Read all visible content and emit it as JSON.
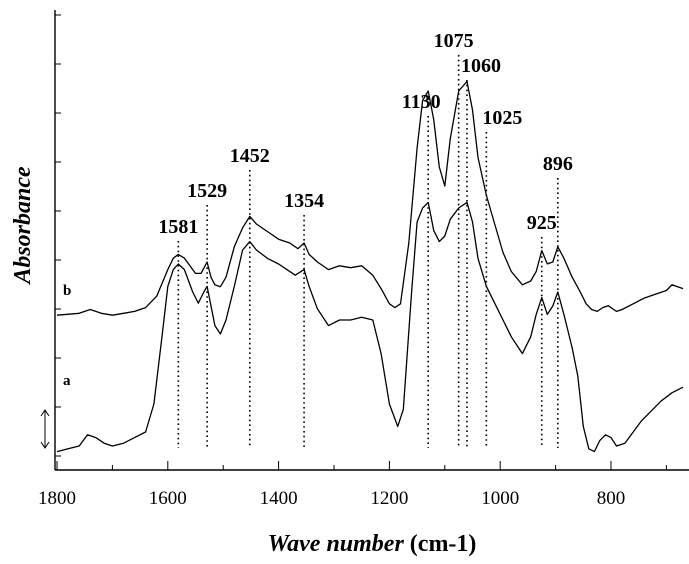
{
  "chart_data": {
    "type": "line",
    "title": "",
    "xlabel": {
      "italic": "Wave number",
      "unit": " (cm-1)"
    },
    "ylabel": "Absorbance",
    "xlim": [
      1800,
      670
    ],
    "x_reversed": true,
    "grid": false,
    "x_ticks": [
      "1800",
      "1600",
      "1400",
      "1200",
      "1000",
      "800"
    ],
    "scale_bar": "double-arrow",
    "peak_markers": [
      {
        "label": "1581",
        "x": 1581
      },
      {
        "label": "1529",
        "x": 1529
      },
      {
        "label": "1452",
        "x": 1452
      },
      {
        "label": "1354",
        "x": 1354
      },
      {
        "label": "1130",
        "x": 1130
      },
      {
        "label": "1075",
        "x": 1075
      },
      {
        "label": "1060",
        "x": 1060
      },
      {
        "label": "1025",
        "x": 1025
      },
      {
        "label": "925",
        "x": 925
      },
      {
        "label": "896",
        "x": 896
      }
    ],
    "series": [
      {
        "name": "b",
        "color": "#000000",
        "points": [
          [
            1800,
            0.22
          ],
          [
            1760,
            0.23
          ],
          [
            1740,
            0.25
          ],
          [
            1720,
            0.23
          ],
          [
            1700,
            0.22
          ],
          [
            1680,
            0.23
          ],
          [
            1660,
            0.24
          ],
          [
            1640,
            0.26
          ],
          [
            1620,
            0.32
          ],
          [
            1600,
            0.46
          ],
          [
            1590,
            0.52
          ],
          [
            1581,
            0.54
          ],
          [
            1570,
            0.52
          ],
          [
            1550,
            0.44
          ],
          [
            1540,
            0.44
          ],
          [
            1529,
            0.5
          ],
          [
            1522,
            0.42
          ],
          [
            1515,
            0.38
          ],
          [
            1505,
            0.37
          ],
          [
            1495,
            0.42
          ],
          [
            1480,
            0.58
          ],
          [
            1465,
            0.68
          ],
          [
            1452,
            0.74
          ],
          [
            1440,
            0.7
          ],
          [
            1420,
            0.66
          ],
          [
            1400,
            0.62
          ],
          [
            1380,
            0.6
          ],
          [
            1365,
            0.57
          ],
          [
            1354,
            0.6
          ],
          [
            1345,
            0.54
          ],
          [
            1330,
            0.5
          ],
          [
            1310,
            0.46
          ],
          [
            1290,
            0.48
          ],
          [
            1270,
            0.47
          ],
          [
            1250,
            0.48
          ],
          [
            1230,
            0.43
          ],
          [
            1215,
            0.36
          ],
          [
            1200,
            0.28
          ],
          [
            1190,
            0.26
          ],
          [
            1180,
            0.28
          ],
          [
            1165,
            0.6
          ],
          [
            1150,
            1.1
          ],
          [
            1140,
            1.35
          ],
          [
            1130,
            1.4
          ],
          [
            1120,
            1.25
          ],
          [
            1110,
            1.0
          ],
          [
            1100,
            0.9
          ],
          [
            1090,
            1.15
          ],
          [
            1075,
            1.4
          ],
          [
            1060,
            1.45
          ],
          [
            1050,
            1.3
          ],
          [
            1040,
            1.05
          ],
          [
            1025,
            0.85
          ],
          [
            1010,
            0.7
          ],
          [
            995,
            0.55
          ],
          [
            980,
            0.45
          ],
          [
            960,
            0.38
          ],
          [
            945,
            0.4
          ],
          [
            935,
            0.45
          ],
          [
            925,
            0.56
          ],
          [
            915,
            0.49
          ],
          [
            905,
            0.5
          ],
          [
            896,
            0.58
          ],
          [
            885,
            0.52
          ],
          [
            870,
            0.42
          ],
          [
            855,
            0.34
          ],
          [
            845,
            0.28
          ],
          [
            835,
            0.25
          ],
          [
            825,
            0.24
          ],
          [
            815,
            0.26
          ],
          [
            805,
            0.27
          ],
          [
            790,
            0.24
          ],
          [
            780,
            0.25
          ],
          [
            760,
            0.28
          ],
          [
            740,
            0.31
          ],
          [
            720,
            0.33
          ],
          [
            700,
            0.35
          ],
          [
            690,
            0.38
          ],
          [
            670,
            0.36
          ]
        ]
      },
      {
        "name": "a",
        "color": "#000000",
        "points": [
          [
            1800,
            0.03
          ],
          [
            1780,
            0.04
          ],
          [
            1760,
            0.05
          ],
          [
            1745,
            0.09
          ],
          [
            1730,
            0.08
          ],
          [
            1715,
            0.06
          ],
          [
            1700,
            0.05
          ],
          [
            1680,
            0.06
          ],
          [
            1660,
            0.08
          ],
          [
            1640,
            0.1
          ],
          [
            1625,
            0.2
          ],
          [
            1610,
            0.45
          ],
          [
            1600,
            0.62
          ],
          [
            1590,
            0.68
          ],
          [
            1581,
            0.7
          ],
          [
            1570,
            0.68
          ],
          [
            1555,
            0.6
          ],
          [
            1545,
            0.56
          ],
          [
            1535,
            0.6
          ],
          [
            1529,
            0.62
          ],
          [
            1522,
            0.55
          ],
          [
            1515,
            0.48
          ],
          [
            1505,
            0.45
          ],
          [
            1495,
            0.5
          ],
          [
            1480,
            0.62
          ],
          [
            1465,
            0.75
          ],
          [
            1452,
            0.78
          ],
          [
            1440,
            0.75
          ],
          [
            1420,
            0.72
          ],
          [
            1400,
            0.7
          ],
          [
            1385,
            0.68
          ],
          [
            1370,
            0.66
          ],
          [
            1354,
            0.68
          ],
          [
            1345,
            0.62
          ],
          [
            1330,
            0.54
          ],
          [
            1310,
            0.48
          ],
          [
            1290,
            0.5
          ],
          [
            1270,
            0.5
          ],
          [
            1250,
            0.51
          ],
          [
            1230,
            0.5
          ],
          [
            1215,
            0.38
          ],
          [
            1200,
            0.2
          ],
          [
            1185,
            0.12
          ],
          [
            1175,
            0.18
          ],
          [
            1160,
            0.6
          ],
          [
            1150,
            0.85
          ],
          [
            1140,
            0.9
          ],
          [
            1130,
            0.92
          ],
          [
            1120,
            0.82
          ],
          [
            1110,
            0.78
          ],
          [
            1100,
            0.8
          ],
          [
            1090,
            0.86
          ],
          [
            1075,
            0.9
          ],
          [
            1060,
            0.92
          ],
          [
            1050,
            0.85
          ],
          [
            1040,
            0.72
          ],
          [
            1025,
            0.62
          ],
          [
            1010,
            0.56
          ],
          [
            995,
            0.5
          ],
          [
            980,
            0.44
          ],
          [
            960,
            0.38
          ],
          [
            945,
            0.44
          ],
          [
            935,
            0.52
          ],
          [
            925,
            0.58
          ],
          [
            915,
            0.52
          ],
          [
            905,
            0.55
          ],
          [
            896,
            0.6
          ],
          [
            885,
            0.52
          ],
          [
            870,
            0.4
          ],
          [
            860,
            0.3
          ],
          [
            850,
            0.12
          ],
          [
            840,
            0.04
          ],
          [
            830,
            0.03
          ],
          [
            820,
            0.07
          ],
          [
            810,
            0.09
          ],
          [
            800,
            0.08
          ],
          [
            790,
            0.05
          ],
          [
            775,
            0.06
          ],
          [
            760,
            0.1
          ],
          [
            745,
            0.14
          ],
          [
            730,
            0.17
          ],
          [
            710,
            0.21
          ],
          [
            690,
            0.24
          ],
          [
            670,
            0.26
          ]
        ]
      }
    ]
  }
}
